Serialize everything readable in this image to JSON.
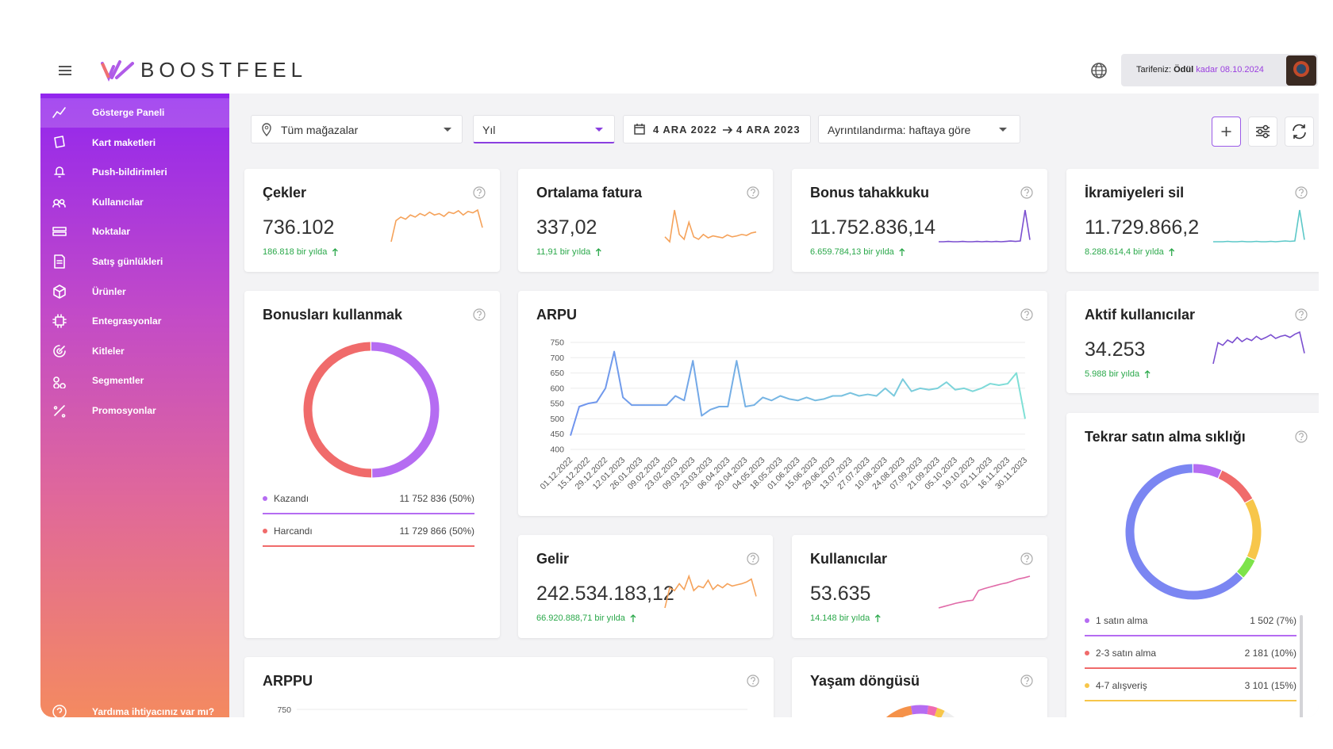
{
  "header": {
    "logo": "BOOSTFEEL",
    "plan_label": "Tarifeniz:",
    "plan_name": "Ödül",
    "plan_until": "kadar",
    "plan_date": "08.10.2024"
  },
  "sidebar": {
    "items": [
      "Gösterge Paneli",
      "Kart maketleri",
      "Push-bildirimleri",
      "Kullanıcılar",
      "Noktalar",
      "Satış günlükleri",
      "Ürünler",
      "Entegrasyonlar",
      "Kitleler",
      "Segmentler",
      "Promosyonlar"
    ],
    "help": "Yardıma ihtiyacınız var mı?"
  },
  "filters": {
    "store": "Tüm mağazalar",
    "period": "Yıl",
    "date_from": "4 ARA 2022",
    "date_to": "4 ARA 2023",
    "detail": "Ayrıntılandırma: haftaya göre"
  },
  "kpis": [
    {
      "title": "Çekler",
      "value": "736.102",
      "delta": "186.818 bir yılda",
      "color": "#f5a25a",
      "trend": [
        20,
        50,
        55,
        52,
        58,
        55,
        60,
        57,
        62,
        58,
        60,
        56,
        62,
        60,
        64,
        58,
        63,
        61,
        65,
        40
      ]
    },
    {
      "title": "Ortalama fatura",
      "value": "337,02",
      "delta": "11,91 bir yılda",
      "color": "#f5a25a",
      "trend": [
        40,
        30,
        95,
        45,
        35,
        70,
        40,
        35,
        45,
        38,
        42,
        40,
        38,
        44,
        40,
        42,
        45,
        43,
        48,
        50
      ]
    },
    {
      "title": "Bonus tahakkuku",
      "value": "11.752.836,14",
      "delta": "6.659.784,13 bir yılda",
      "color": "#7b4fd0",
      "trend": [
        10,
        10,
        11,
        10,
        10,
        11,
        10,
        10,
        11,
        10,
        11,
        10,
        11,
        10,
        11,
        12,
        11,
        12,
        95,
        15
      ]
    },
    {
      "title": "İkramiyeleri sil",
      "value": "11.729.866,2",
      "delta": "8.288.614,4 bir yılda",
      "color": "#5cc8c8",
      "trend": [
        10,
        10,
        10,
        11,
        10,
        10,
        11,
        10,
        10,
        11,
        10,
        10,
        11,
        10,
        11,
        12,
        11,
        12,
        90,
        15
      ]
    },
    {
      "title": "Aktif kullanıcılar",
      "value": "34.253",
      "delta": "5.988 bir yılda",
      "color": "#7b4fd0",
      "trend": [
        20,
        60,
        55,
        65,
        60,
        70,
        62,
        68,
        64,
        72,
        66,
        70,
        75,
        68,
        72,
        74,
        70,
        76,
        80,
        40
      ]
    },
    {
      "title": "Gelir",
      "value": "242.534.183,12",
      "delta": "66.920.888,71 bir yılda",
      "color": "#f5a25a",
      "trend": [
        20,
        55,
        50,
        62,
        52,
        75,
        50,
        58,
        55,
        68,
        52,
        60,
        55,
        62,
        58,
        60,
        62,
        65,
        70,
        40
      ]
    },
    {
      "title": "Kullanıcılar",
      "value": "53.635",
      "delta": "14.148 bir yılda",
      "color": "#e06aa8",
      "trend": [
        10,
        14,
        18,
        22,
        25,
        28,
        30,
        55,
        60,
        64,
        68,
        72,
        75,
        80,
        85,
        88,
        92
      ]
    }
  ],
  "chart_data": [
    {
      "type": "line",
      "title": "ARPU",
      "color": "#6f93ee",
      "color_end": "#7fe0d6",
      "categories": [
        "01.12.2022",
        null,
        "15.12.2022",
        null,
        "29.12.2022",
        null,
        "12.01.2023",
        null,
        "26.01.2023",
        null,
        "09.02.2023",
        null,
        "23.02.2023",
        null,
        "09.03.2023",
        null,
        "23.03.2023",
        null,
        "06.04.2023",
        null,
        "20.04.2023",
        null,
        "04.05.2023",
        null,
        "18.05.2023",
        null,
        "01.06.2023",
        null,
        "15.06.2023",
        null,
        "29.06.2023",
        null,
        "13.07.2023",
        null,
        "27.07.2023",
        null,
        "10.08.2023",
        null,
        "24.08.2023",
        null,
        "07.09.2023",
        null,
        "21.09.2023",
        null,
        "05.10.2023",
        null,
        "19.10.2023",
        null,
        "02.11.2023",
        null,
        "16.11.2023",
        null,
        "30.11.2023"
      ],
      "values": [
        445,
        540,
        550,
        555,
        600,
        720,
        570,
        545,
        545,
        545,
        545,
        545,
        575,
        560,
        690,
        510,
        530,
        540,
        540,
        690,
        540,
        545,
        570,
        560,
        575,
        565,
        560,
        570,
        560,
        565,
        575,
        575,
        585,
        575,
        580,
        575,
        600,
        575,
        630,
        590,
        600,
        595,
        600,
        620,
        595,
        600,
        590,
        600,
        615,
        610,
        615,
        650,
        500
      ],
      "ylim": [
        400,
        750
      ],
      "yticks": [
        400,
        450,
        500,
        550,
        600,
        650,
        700,
        750
      ],
      "grid": true
    },
    {
      "type": "pie",
      "title": "Bonusları kullanmak",
      "categories": [
        "Kazandı",
        "Harcandı"
      ],
      "values": [
        11752836,
        11729866
      ],
      "percent": [
        50,
        50
      ],
      "value_labels": [
        "11 752 836 (50%)",
        "11 729 866 (50%)"
      ],
      "colors": [
        "#b56cf2",
        "#f06b6b"
      ]
    },
    {
      "type": "pie",
      "title": "Tekrar satın alma sıklığı",
      "categories": [
        "1 satın alma",
        "2-3 satın alma",
        "4-7 alışveriş"
      ],
      "values": [
        1502,
        2181,
        3101
      ],
      "percent": [
        7,
        10,
        15
      ],
      "value_labels": [
        "1 502 (7%)",
        "2 181 (10%)",
        "3 101 (15%)"
      ],
      "colors": [
        "#b56cf2",
        "#f06b6b",
        "#f7c64a"
      ]
    },
    {
      "type": "line",
      "title": "ARPPU",
      "yticks": [
        750
      ]
    },
    {
      "type": "pie",
      "title": "Yaşam döngüsü"
    }
  ]
}
